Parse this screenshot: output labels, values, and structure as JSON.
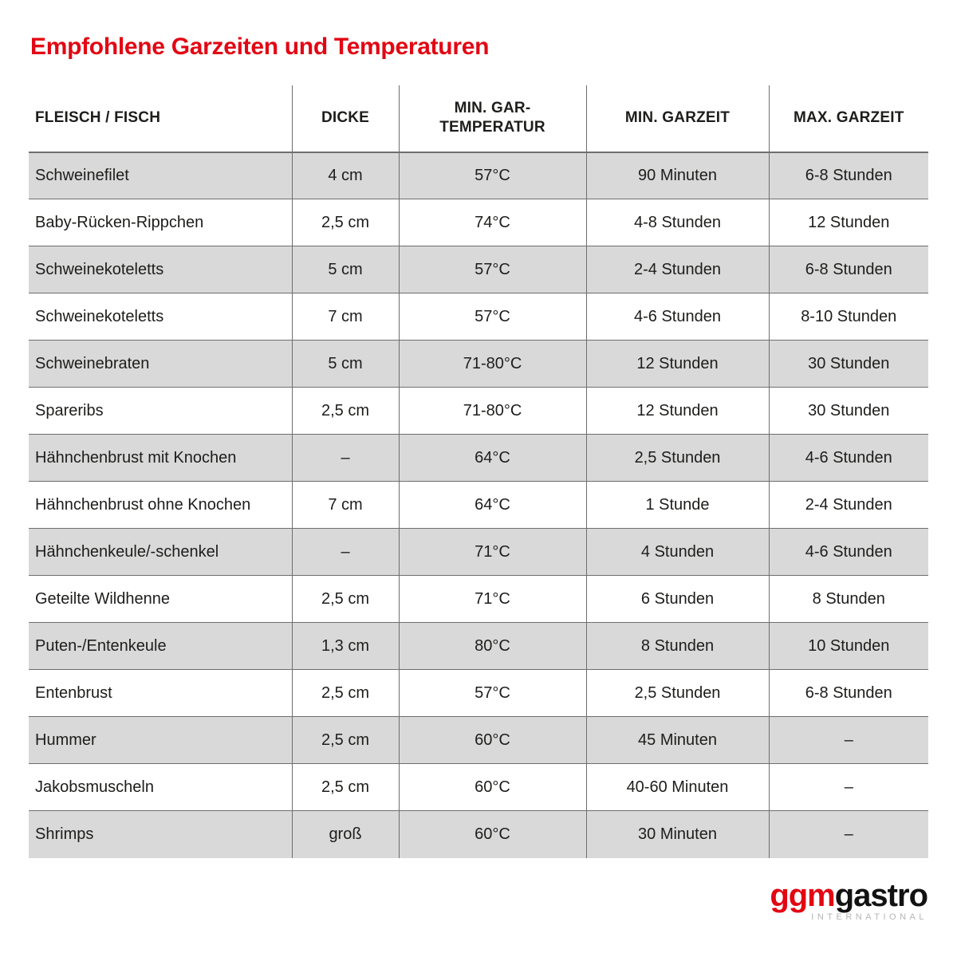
{
  "title": "Empfohlene Garzeiten und Temperaturen",
  "colors": {
    "title_red": "#e30613",
    "row_shaded": "#d9d9d9",
    "row_plain": "#ffffff",
    "border_gray": "#6e6e6e",
    "text_dark": "#1d1d1b",
    "logo_international_gray": "#b5b5b5"
  },
  "table": {
    "headers": [
      "FLEISCH / FISCH",
      "DICKE",
      "MIN. GAR-\nTEMPERATUR",
      "MIN. GARZEIT",
      "MAX. GARZEIT"
    ],
    "rows": [
      [
        "Schweinefilet",
        "4 cm",
        "57°C",
        "90 Minuten",
        "6-8 Stunden"
      ],
      [
        "Baby-Rücken-Rippchen",
        "2,5 cm",
        "74°C",
        "4-8 Stunden",
        "12 Stunden"
      ],
      [
        "Schweinekoteletts",
        "5 cm",
        "57°C",
        "2-4 Stunden",
        "6-8 Stunden"
      ],
      [
        "Schweinekoteletts",
        "7 cm",
        "57°C",
        "4-6 Stunden",
        "8-10 Stunden"
      ],
      [
        "Schweinebraten",
        "5 cm",
        "71-80°C",
        "12 Stunden",
        "30 Stunden"
      ],
      [
        "Spareribs",
        "2,5 cm",
        "71-80°C",
        "12 Stunden",
        "30 Stunden"
      ],
      [
        "Hähnchenbrust mit Knochen",
        "–",
        "64°C",
        "2,5 Stunden",
        "4-6 Stunden"
      ],
      [
        "Hähnchenbrust ohne Knochen",
        "7 cm",
        "64°C",
        "1 Stunde",
        "2-4 Stunden"
      ],
      [
        "Hähnchenkeule/-schenkel",
        "–",
        "71°C",
        "4 Stunden",
        "4-6 Stunden"
      ],
      [
        "Geteilte Wildhenne",
        "2,5 cm",
        "71°C",
        "6 Stunden",
        "8 Stunden"
      ],
      [
        "Puten-/Entenkeule",
        "1,3 cm",
        "80°C",
        "8 Stunden",
        "10 Stunden"
      ],
      [
        "Entenbrust",
        "2,5 cm",
        "57°C",
        "2,5 Stunden",
        "6-8 Stunden"
      ],
      [
        "Hummer",
        "2,5 cm",
        "60°C",
        "45 Minuten",
        "–"
      ],
      [
        "Jakobsmuscheln",
        "2,5 cm",
        "60°C",
        "40-60 Minuten",
        "–"
      ],
      [
        "Shrimps",
        "groß",
        "60°C",
        "30 Minuten",
        "–"
      ]
    ]
  },
  "logo": {
    "part_red": "ggm",
    "part_black": "gastro",
    "subtitle": "INTERNATIONAL"
  }
}
